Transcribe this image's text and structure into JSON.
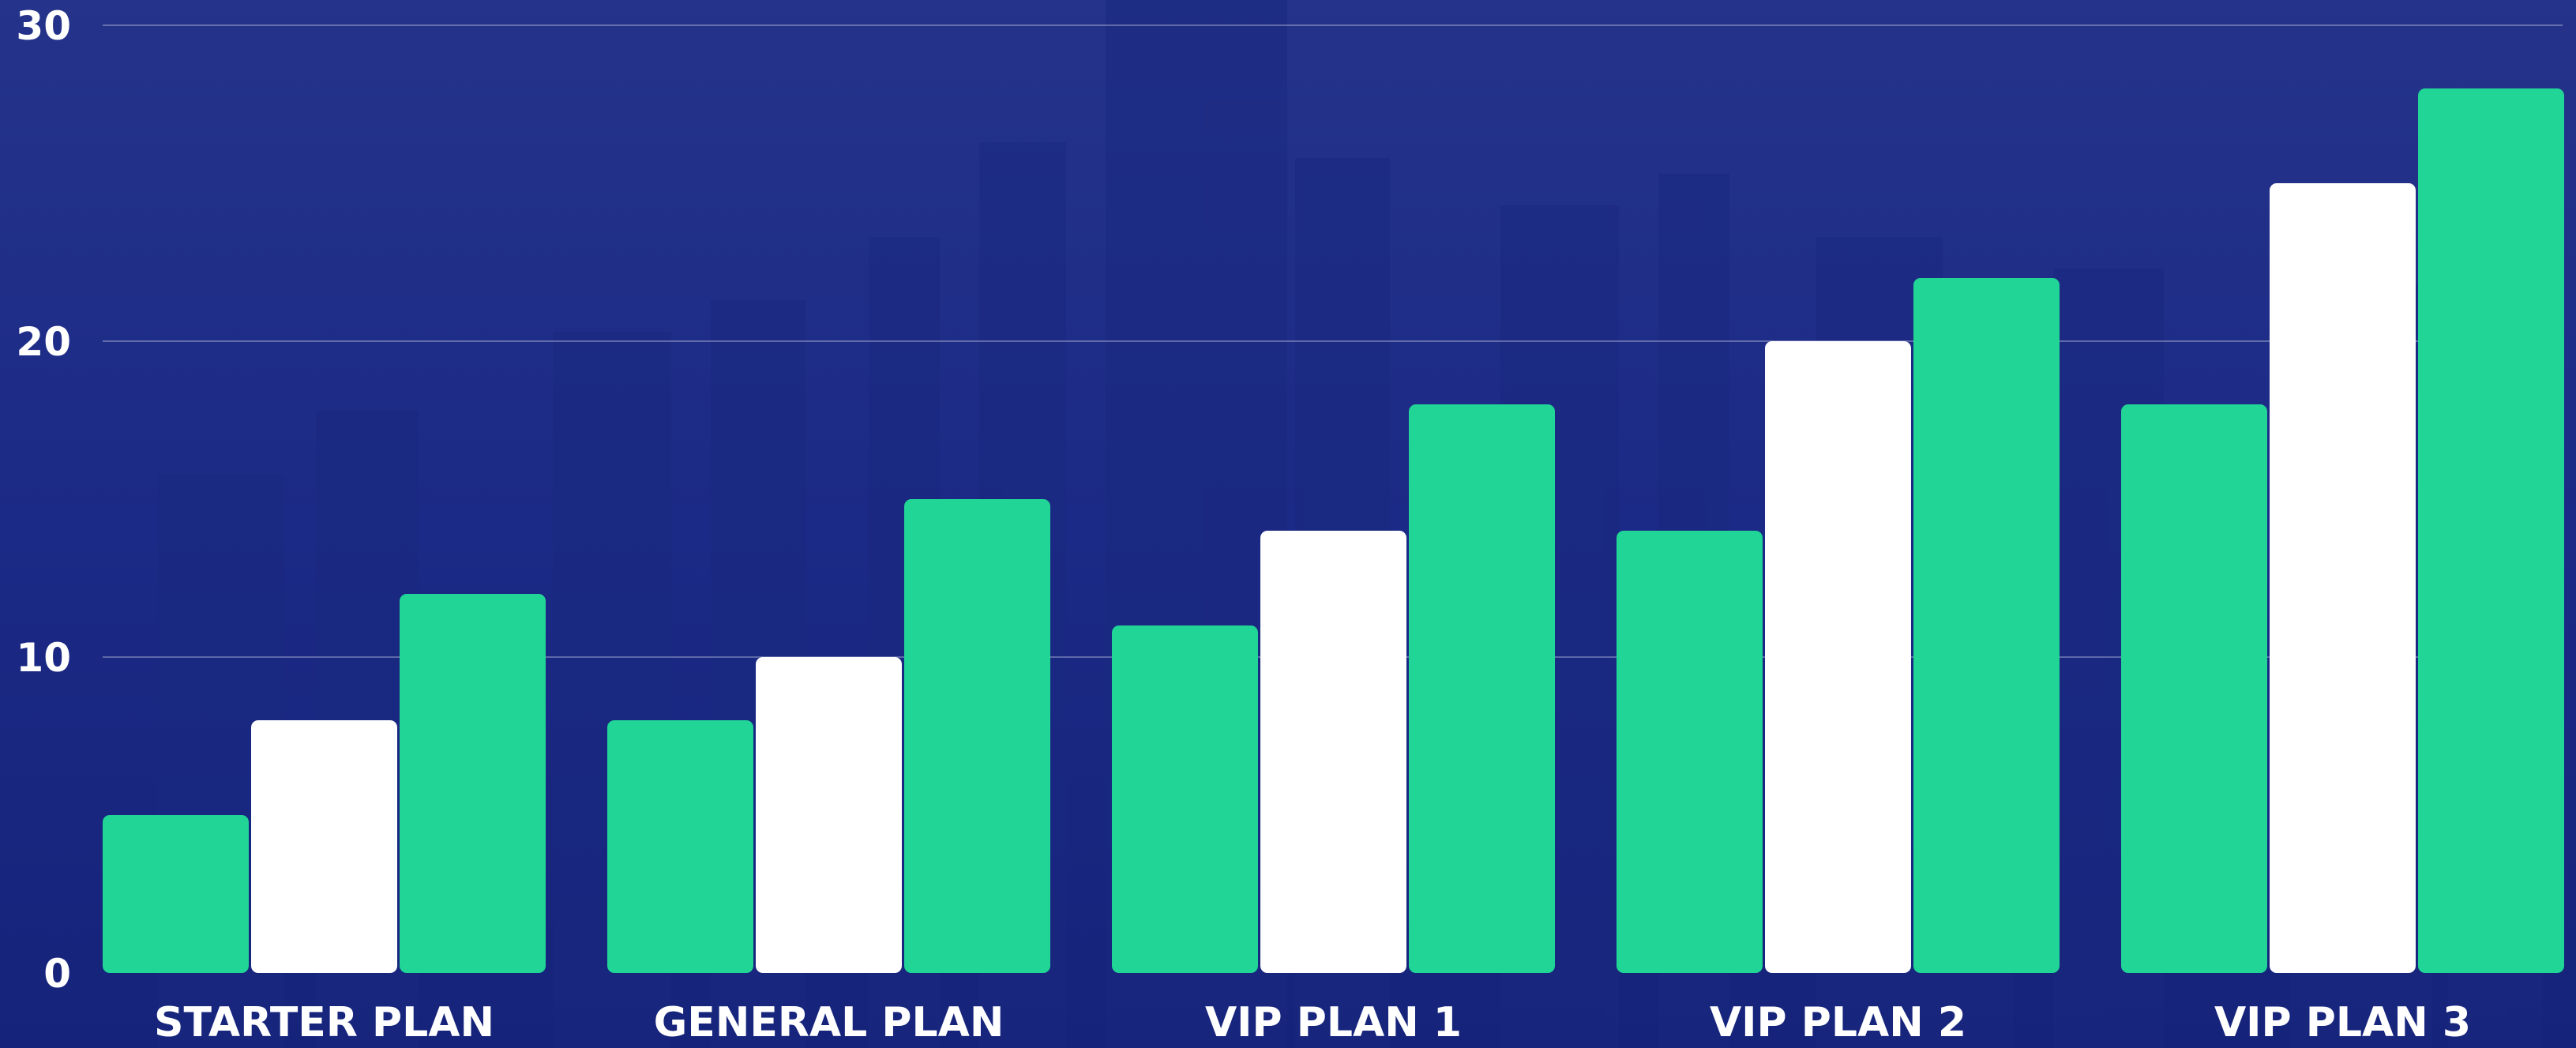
{
  "chart_data": {
    "type": "bar",
    "categories": [
      "STARTER PLAN",
      "GENERAL PLAN",
      "VIP PLAN 1",
      "VIP PLAN 2",
      "VIP PLAN 3"
    ],
    "series": [
      {
        "values": [
          5,
          8,
          11,
          14,
          18
        ],
        "color": "#21d597"
      },
      {
        "values": [
          8,
          10,
          14,
          20,
          25
        ],
        "color": "#ffffff"
      },
      {
        "values": [
          12,
          15,
          18,
          22,
          28
        ],
        "color": "#21d597"
      }
    ],
    "ylim": [
      0,
      30
    ],
    "yticks": [
      "0",
      "10",
      "20",
      "30"
    ],
    "grid": true,
    "legend": "none",
    "background_color": "#1b2a86"
  }
}
